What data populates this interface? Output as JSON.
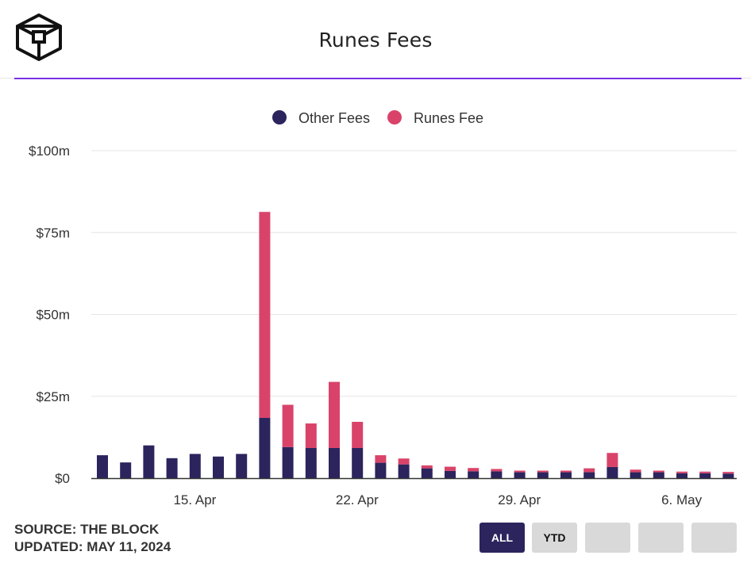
{
  "header": {
    "title": "Runes Fees"
  },
  "logo": {
    "icon": "cube-logo-icon"
  },
  "colors": {
    "other": "#2c245d",
    "runes": "#d9436a",
    "accent": "#7a2ee6",
    "grid": "#e6e6e6"
  },
  "footer": {
    "source": "SOURCE: THE BLOCK",
    "updated": "UPDATED: MAY 11, 2024"
  },
  "range_buttons": [
    {
      "label": "ALL",
      "active": true
    },
    {
      "label": "YTD",
      "active": false
    },
    {
      "label": "",
      "active": false
    },
    {
      "label": "",
      "active": false
    },
    {
      "label": "",
      "active": false
    }
  ],
  "chart_data": {
    "type": "bar",
    "stacked": true,
    "title": "Runes Fees",
    "legend": {
      "position": "top-center",
      "entries": [
        "Other Fees",
        "Runes Fee"
      ]
    },
    "y_ticks": [
      "$0",
      "$25m",
      "$50m",
      "$75m",
      "$100m"
    ],
    "ylim": [
      0,
      100
    ],
    "y_unit": "$m",
    "grid": true,
    "x_ticks": [
      {
        "label": "15. Apr",
        "date": "2024-04-15"
      },
      {
        "label": "22. Apr",
        "date": "2024-04-22"
      },
      {
        "label": "29. Apr",
        "date": "2024-04-29"
      },
      {
        "label": "6. May",
        "date": "2024-05-06"
      }
    ],
    "categories": [
      "2024-04-13",
      "2024-04-14",
      "2024-04-15",
      "2024-04-16",
      "2024-04-17",
      "2024-04-18",
      "2024-04-19",
      "2024-04-20",
      "2024-04-21",
      "2024-04-22",
      "2024-04-23",
      "2024-04-24",
      "2024-04-25",
      "2024-04-26",
      "2024-04-27",
      "2024-04-28",
      "2024-04-29",
      "2024-04-30",
      "2024-05-01",
      "2024-05-02",
      "2024-05-03",
      "2024-05-04",
      "2024-05-05",
      "2024-05-06",
      "2024-05-07",
      "2024-05-08",
      "2024-05-09",
      "2024-05-10"
    ],
    "series": [
      {
        "name": "Other Fees",
        "values": [
          7.0,
          4.8,
          10.0,
          6.1,
          7.4,
          6.6,
          7.4,
          18.4,
          9.5,
          9.2,
          9.2,
          9.2,
          4.7,
          4.2,
          3.0,
          2.2,
          2.1,
          2.1,
          1.8,
          1.8,
          1.8,
          1.8,
          3.4,
          1.8,
          1.8,
          1.5,
          1.5,
          1.4
        ]
      },
      {
        "name": "Runes Fee",
        "values": [
          0,
          0,
          0,
          0,
          0,
          0,
          0,
          62.9,
          12.9,
          7.5,
          20.2,
          8.0,
          2.3,
          1.8,
          0.9,
          1.3,
          1.0,
          0.7,
          0.5,
          0.5,
          0.5,
          1.2,
          4.3,
          0.8,
          0.5,
          0.5,
          0.5,
          0.5
        ]
      }
    ]
  }
}
